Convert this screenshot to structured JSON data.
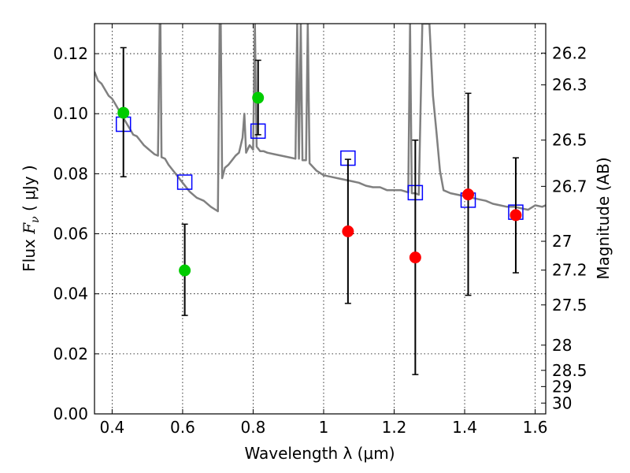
{
  "chart_data": {
    "type": "scatter",
    "xlabel": "Wavelength  λ (μm)",
    "ylabel": "Flux  F_ν  ( μJy )",
    "ylabel_parts": {
      "pre": "Flux  ",
      "sym": "F",
      "sub": "ν",
      "post": "  ( μJy )"
    },
    "y2label": "Magnitude (AB)",
    "xlim": [
      0.35,
      1.63
    ],
    "ylim": [
      0.0,
      0.13
    ],
    "grid": true,
    "x_ticks": [
      0.4,
      0.6,
      0.8,
      1.0,
      1.2,
      1.4,
      1.6
    ],
    "x_tick_labels": [
      "0.4",
      "0.6",
      "0.8",
      "1",
      "1.2",
      "1.4",
      "1.6"
    ],
    "y_ticks": [
      0.0,
      0.02,
      0.04,
      0.06,
      0.08,
      0.1,
      0.12
    ],
    "y_tick_labels": [
      "0.00",
      "0.02",
      "0.04",
      "0.06",
      "0.08",
      "0.10",
      "0.12"
    ],
    "y2_ticks": [
      {
        "label": "26.2",
        "flux": 0.1202
      },
      {
        "label": "26.3",
        "flux": 0.1096
      },
      {
        "label": "26.5",
        "flux": 0.0912
      },
      {
        "label": "26.7",
        "flux": 0.0758
      },
      {
        "label": "27",
        "flux": 0.0575
      },
      {
        "label": "27.2",
        "flux": 0.0479
      },
      {
        "label": "27.5",
        "flux": 0.0363
      },
      {
        "label": "28",
        "flux": 0.0229
      },
      {
        "label": "28.5",
        "flux": 0.0145
      },
      {
        "label": "29",
        "flux": 0.0091
      },
      {
        "label": "30",
        "flux": 0.0036
      }
    ],
    "colors": {
      "green": "#00cc00",
      "red": "#ff0000",
      "model": "#808080",
      "square": "#0000ff",
      "errorbar": "#000000"
    },
    "series": [
      {
        "kind": "observed_detection",
        "color": "green",
        "points": [
          {
            "x": 0.432,
            "y": 0.1003,
            "err_low": 0.079,
            "err_high": 0.122
          },
          {
            "x": 0.606,
            "y": 0.0478,
            "err_low": 0.0328,
            "err_high": 0.0632
          },
          {
            "x": 0.814,
            "y": 0.1053,
            "err_low": 0.093,
            "err_high": 0.1178
          }
        ]
      },
      {
        "kind": "observed_upper",
        "color": "red",
        "points": [
          {
            "x": 1.069,
            "y": 0.0608,
            "err_low": 0.0368,
            "err_high": 0.0848
          },
          {
            "x": 1.26,
            "y": 0.0521,
            "err_low": 0.0131,
            "err_high": 0.0912
          },
          {
            "x": 1.41,
            "y": 0.0731,
            "err_low": 0.0395,
            "err_high": 0.1068
          },
          {
            "x": 1.545,
            "y": 0.0662,
            "err_low": 0.047,
            "err_high": 0.0853
          }
        ]
      },
      {
        "kind": "model_band_flux",
        "color": "square",
        "points": [
          {
            "x": 0.432,
            "y": 0.0965
          },
          {
            "x": 0.606,
            "y": 0.0772
          },
          {
            "x": 0.814,
            "y": 0.0942
          },
          {
            "x": 1.069,
            "y": 0.0852
          },
          {
            "x": 1.26,
            "y": 0.0737
          },
          {
            "x": 1.41,
            "y": 0.0712
          },
          {
            "x": 1.545,
            "y": 0.0672
          }
        ]
      },
      {
        "kind": "model_spectrum",
        "color": "model",
        "points": [
          [
            0.35,
            0.114
          ],
          [
            0.36,
            0.111
          ],
          [
            0.37,
            0.11
          ],
          [
            0.38,
            0.108
          ],
          [
            0.39,
            0.106
          ],
          [
            0.4,
            0.105
          ],
          [
            0.41,
            0.103
          ],
          [
            0.42,
            0.101
          ],
          [
            0.43,
            0.099
          ],
          [
            0.44,
            0.097
          ],
          [
            0.45,
            0.095
          ],
          [
            0.46,
            0.093
          ],
          [
            0.47,
            0.0925
          ],
          [
            0.48,
            0.091
          ],
          [
            0.49,
            0.0895
          ],
          [
            0.5,
            0.0885
          ],
          [
            0.51,
            0.0875
          ],
          [
            0.52,
            0.0865
          ],
          [
            0.53,
            0.086
          ],
          [
            0.535,
            0.13
          ],
          [
            0.537,
            0.13
          ],
          [
            0.54,
            0.0855
          ],
          [
            0.55,
            0.085
          ],
          [
            0.56,
            0.083
          ],
          [
            0.58,
            0.08
          ],
          [
            0.6,
            0.077
          ],
          [
            0.62,
            0.074
          ],
          [
            0.64,
            0.072
          ],
          [
            0.66,
            0.071
          ],
          [
            0.68,
            0.069
          ],
          [
            0.7,
            0.0675
          ],
          [
            0.705,
            0.13
          ],
          [
            0.708,
            0.13
          ],
          [
            0.712,
            0.0785
          ],
          [
            0.72,
            0.082
          ],
          [
            0.73,
            0.083
          ],
          [
            0.74,
            0.0845
          ],
          [
            0.75,
            0.086
          ],
          [
            0.76,
            0.087
          ],
          [
            0.77,
            0.092
          ],
          [
            0.775,
            0.1
          ],
          [
            0.78,
            0.087
          ],
          [
            0.79,
            0.0895
          ],
          [
            0.8,
            0.088
          ],
          [
            0.805,
            0.13
          ],
          [
            0.81,
            0.089
          ],
          [
            0.82,
            0.0875
          ],
          [
            0.83,
            0.0875
          ],
          [
            0.84,
            0.087
          ],
          [
            0.86,
            0.0865
          ],
          [
            0.88,
            0.086
          ],
          [
            0.9,
            0.0855
          ],
          [
            0.92,
            0.085
          ],
          [
            0.925,
            0.13
          ],
          [
            0.93,
            0.085
          ],
          [
            0.935,
            0.13
          ],
          [
            0.94,
            0.0845
          ],
          [
            0.95,
            0.0845
          ],
          [
            0.955,
            0.13
          ],
          [
            0.96,
            0.0835
          ],
          [
            0.98,
            0.081
          ],
          [
            1.0,
            0.0795
          ],
          [
            1.02,
            0.079
          ],
          [
            1.04,
            0.0785
          ],
          [
            1.06,
            0.078
          ],
          [
            1.08,
            0.0775
          ],
          [
            1.1,
            0.077
          ],
          [
            1.12,
            0.076
          ],
          [
            1.14,
            0.0755
          ],
          [
            1.16,
            0.0755
          ],
          [
            1.18,
            0.0745
          ],
          [
            1.2,
            0.0745
          ],
          [
            1.22,
            0.0745
          ],
          [
            1.24,
            0.0738
          ],
          [
            1.245,
            0.13
          ],
          [
            1.25,
            0.0735
          ],
          [
            1.26,
            0.0735
          ],
          [
            1.27,
            0.073
          ],
          [
            1.28,
            0.13
          ],
          [
            1.29,
            0.13
          ],
          [
            1.3,
            0.13
          ],
          [
            1.31,
            0.106
          ],
          [
            1.32,
            0.094
          ],
          [
            1.33,
            0.081
          ],
          [
            1.34,
            0.0745
          ],
          [
            1.36,
            0.0735
          ],
          [
            1.38,
            0.073
          ],
          [
            1.4,
            0.0725
          ],
          [
            1.42,
            0.072
          ],
          [
            1.44,
            0.0715
          ],
          [
            1.46,
            0.071
          ],
          [
            1.48,
            0.07
          ],
          [
            1.5,
            0.0695
          ],
          [
            1.52,
            0.069
          ],
          [
            1.54,
            0.069
          ],
          [
            1.56,
            0.0685
          ],
          [
            1.58,
            0.068
          ],
          [
            1.6,
            0.0695
          ],
          [
            1.62,
            0.069
          ],
          [
            1.63,
            0.0695
          ]
        ]
      }
    ]
  }
}
